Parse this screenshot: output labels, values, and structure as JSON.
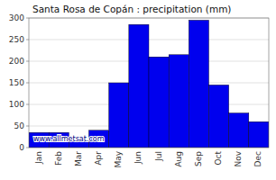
{
  "chart_data": {
    "type": "bar",
    "title": "Santa Rosa de Copán : precipitation (mm)",
    "categories": [
      "Jan",
      "Feb",
      "Mar",
      "Apr",
      "May",
      "Jun",
      "Jul",
      "Aug",
      "Sep",
      "Oct",
      "Nov",
      "Dec"
    ],
    "values": [
      35,
      35,
      15,
      40,
      150,
      285,
      210,
      215,
      295,
      145,
      80,
      60
    ],
    "color": "#0000EE",
    "ylim": [
      0,
      300
    ],
    "yticks": [
      0,
      50,
      100,
      150,
      200,
      250,
      300
    ],
    "grid": true,
    "annotations": [
      "www.allmetsat.com"
    ]
  }
}
